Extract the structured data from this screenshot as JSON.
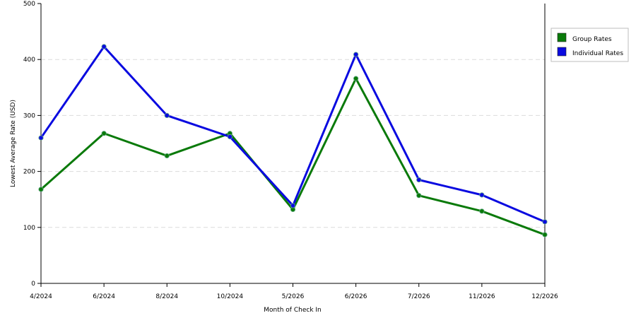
{
  "chart_data": {
    "type": "line",
    "xlabel": "Month of Check In",
    "ylabel": "Lowest Average Rate (USD)",
    "ylim": [
      0,
      500
    ],
    "yticks": [
      0,
      100,
      200,
      300,
      400,
      500
    ],
    "grid": "horizontal dashed",
    "legend_position": "top-right",
    "categories": [
      "4/2024",
      "6/2024",
      "8/2024",
      "10/2024",
      "5/2026",
      "6/2026",
      "7/2026",
      "11/2026",
      "12/2026"
    ],
    "series": [
      {
        "name": "Group Rates",
        "color": "#0a7a0a",
        "values": [
          168,
          268,
          228,
          268,
          132,
          366,
          157,
          129,
          87
        ]
      },
      {
        "name": "Individual Rates",
        "color": "#0a0ae0",
        "values": [
          260,
          423,
          300,
          262,
          139,
          409,
          185,
          158,
          110
        ]
      }
    ]
  }
}
